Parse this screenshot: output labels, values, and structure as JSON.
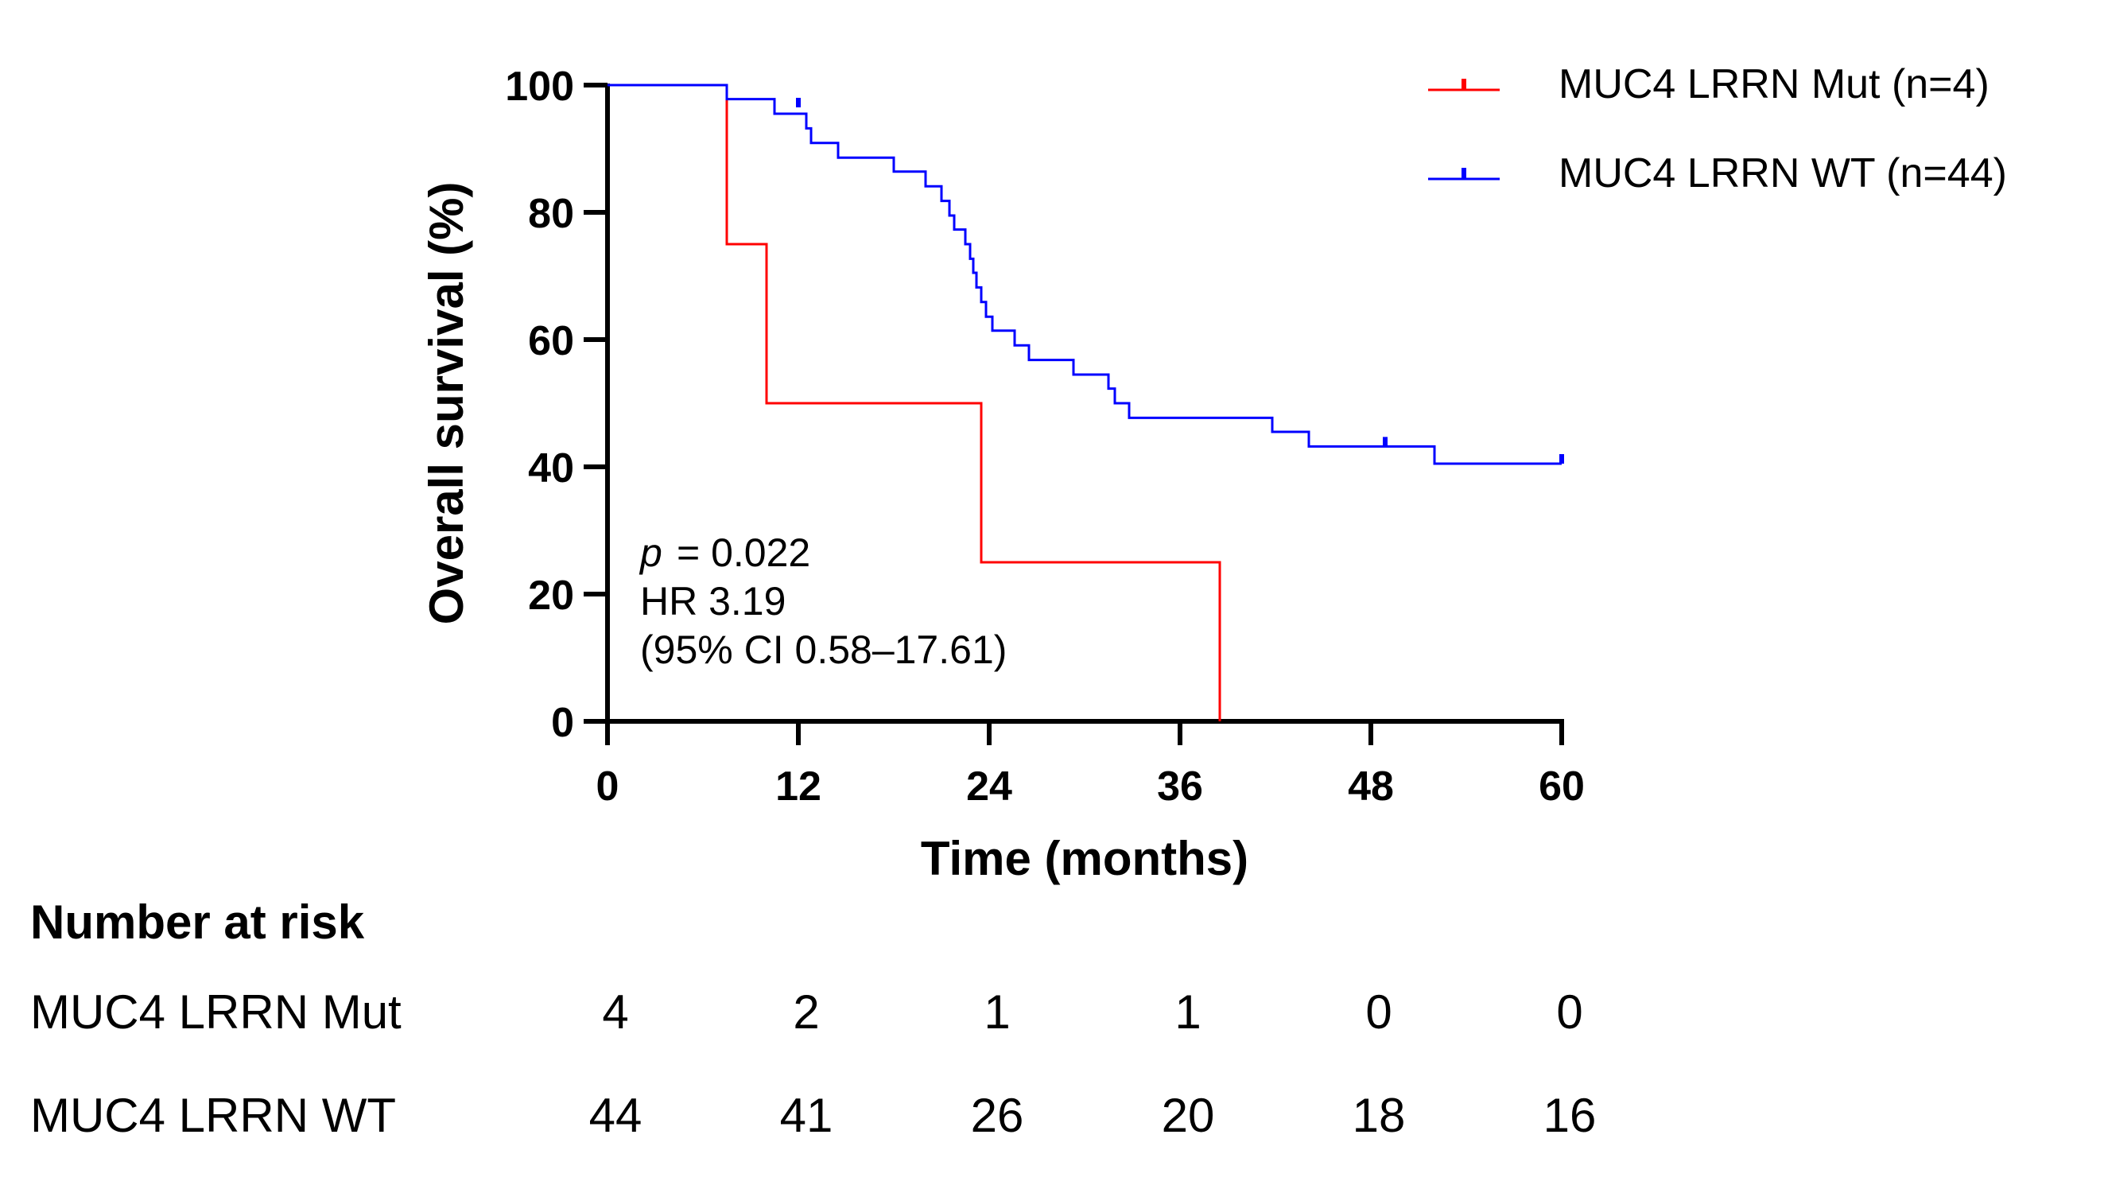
{
  "chart_data": {
    "type": "line",
    "subtype": "kaplan-meier",
    "xlabel": "Time (months)",
    "ylabel": "Overall survival  (%)",
    "xlim": [
      0,
      60
    ],
    "ylim": [
      0,
      100
    ],
    "xticks": [
      0,
      12,
      24,
      36,
      48,
      60
    ],
    "yticks": [
      0,
      20,
      40,
      60,
      80,
      100
    ],
    "grid": false,
    "legend_position": "top-right",
    "annotation": {
      "p_label": "p",
      "p_value": "= 0.022",
      "hr": "HR 3.19",
      "ci": "(95% CI 0.58–17.61)"
    },
    "series": [
      {
        "name": "MUC4 LRRN Mut (n=4)",
        "color": "#ff0000",
        "steps": [
          [
            0,
            100
          ],
          [
            7.5,
            75
          ],
          [
            10,
            50
          ],
          [
            23.5,
            25
          ],
          [
            38.5,
            0
          ]
        ],
        "censored": []
      },
      {
        "name": "MUC4 LRRN WT (n=44)",
        "color": "#0000ff",
        "steps": [
          [
            0,
            100
          ],
          [
            7.5,
            97.8
          ],
          [
            10.5,
            95.5
          ],
          [
            12.5,
            93.2
          ],
          [
            12.8,
            90.9
          ],
          [
            14.5,
            88.6
          ],
          [
            18,
            86.4
          ],
          [
            20,
            84.1
          ],
          [
            21,
            81.8
          ],
          [
            21.5,
            79.5
          ],
          [
            21.8,
            77.3
          ],
          [
            22.5,
            75
          ],
          [
            22.8,
            72.7
          ],
          [
            23,
            70.5
          ],
          [
            23.2,
            68.2
          ],
          [
            23.5,
            65.9
          ],
          [
            23.8,
            63.6
          ],
          [
            24.2,
            61.4
          ],
          [
            25.6,
            59.1
          ],
          [
            26.5,
            56.8
          ],
          [
            29.3,
            54.5
          ],
          [
            31.5,
            52.3
          ],
          [
            31.9,
            50
          ],
          [
            32.8,
            47.7
          ],
          [
            41.8,
            45.5
          ],
          [
            44.1,
            43.2
          ],
          [
            52,
            40.5
          ]
        ],
        "censored": [
          [
            12,
            96.5
          ],
          [
            48.9,
            43.2
          ],
          [
            60,
            40.5
          ]
        ]
      }
    ],
    "risk_table": {
      "title": "Number at risk",
      "timepoints": [
        0,
        12,
        24,
        36,
        48,
        60
      ],
      "rows": [
        {
          "label": "MUC4 LRRN Mut",
          "values": [
            "4",
            "2",
            "1",
            "1",
            "0",
            "0"
          ]
        },
        {
          "label": "MUC4 LRRN WT",
          "values": [
            "44",
            "41",
            "26",
            "20",
            "18",
            "16"
          ]
        }
      ]
    }
  }
}
